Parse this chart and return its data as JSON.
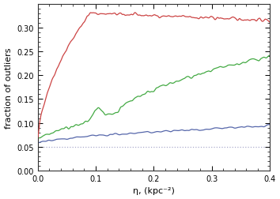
{
  "title": "",
  "xlabel": "η, (kpc⁻²)",
  "ylabel": "fraction of outliers",
  "xlim": [
    0.0,
    0.4
  ],
  "ylim": [
    0.0,
    0.35
  ],
  "yticks": [
    0.0,
    0.05,
    0.1,
    0.15,
    0.2,
    0.25,
    0.3
  ],
  "xticks": [
    0.0,
    0.1,
    0.2,
    0.3,
    0.4
  ],
  "dotted_line_y": 0.05,
  "background_color": "#ffffff",
  "line_colors": {
    "red": "#cc4444",
    "green": "#44aa44",
    "blue": "#5566aa",
    "dotted": "#aaaacc"
  },
  "seed": 42
}
